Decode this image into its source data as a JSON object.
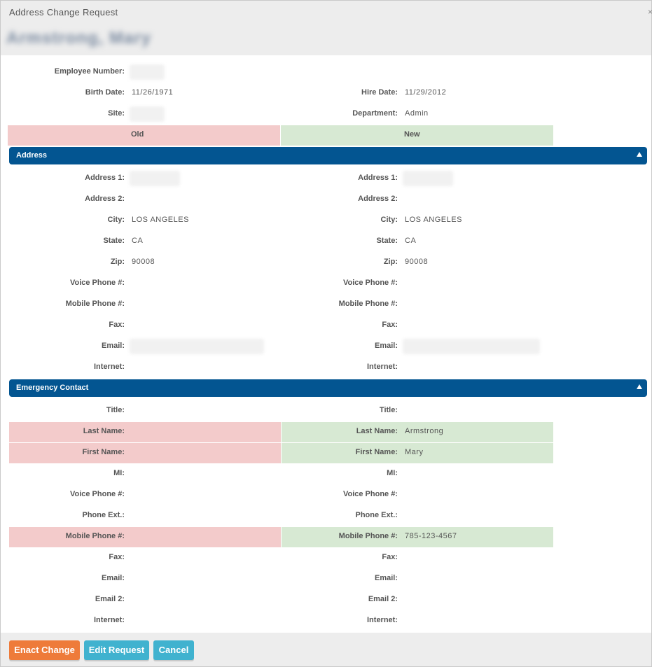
{
  "dialog": {
    "title": "Address Change Request",
    "close_label": "×",
    "employee_name": "Armstrong, Mary"
  },
  "summary": {
    "employee_number_label": "Employee Number:",
    "birth_date_label": "Birth Date:",
    "birth_date": "11/26/1971",
    "hire_date_label": "Hire Date:",
    "hire_date": "11/29/2012",
    "site_label": "Site:",
    "department_label": "Department:",
    "department": "Admin",
    "old_label": "Old",
    "new_label": "New"
  },
  "address": {
    "section_title": "Address",
    "labels": {
      "address1": "Address 1:",
      "address2": "Address 2:",
      "city": "City:",
      "state": "State:",
      "zip": "Zip:",
      "voice_phone": "Voice Phone #:",
      "mobile_phone": "Mobile Phone #:",
      "fax": "Fax:",
      "email": "Email:",
      "internet": "Internet:"
    },
    "old": {
      "city": "LOS ANGELES",
      "state": "CA",
      "zip": "90008"
    },
    "new": {
      "city": "LOS ANGELES",
      "state": "CA",
      "zip": "90008"
    }
  },
  "emergency": {
    "section_title": "Emergency Contact",
    "labels": {
      "title": "Title:",
      "last_name": "Last Name:",
      "first_name": "First Name:",
      "mi": "MI:",
      "voice_phone": "Voice Phone #:",
      "phone_ext": "Phone Ext.:",
      "mobile_phone": "Mobile Phone #:",
      "fax": "Fax:",
      "email": "Email:",
      "email2": "Email 2:",
      "internet": "Internet:"
    },
    "new": {
      "last_name": "Armstrong",
      "first_name": "Mary",
      "mobile_phone": "785-123-4567"
    }
  },
  "buttons": {
    "enact": "Enact Change",
    "edit": "Edit Request",
    "cancel": "Cancel"
  },
  "colors": {
    "header_blue": "#035591",
    "old_highlight": "#f3cbcb",
    "new_highlight": "#d7e9d3",
    "orange_button": "#ee7b3a",
    "blue_button": "#40b2cf"
  }
}
